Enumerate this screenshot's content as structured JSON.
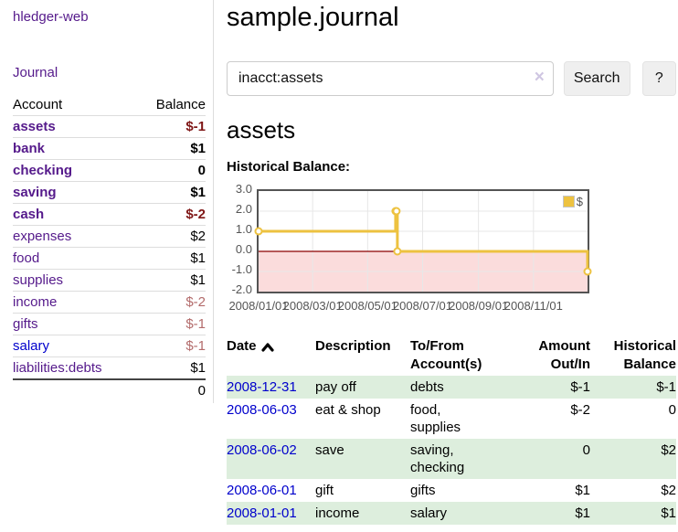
{
  "sidebar": {
    "brand": "hledger-web",
    "journal_link": "Journal",
    "accounts_table": {
      "account_header": "Account",
      "balance_header": "Balance",
      "rows": [
        {
          "name": "assets",
          "balance": "$-1"
        },
        {
          "name": "bank",
          "balance": "$1"
        },
        {
          "name": "checking",
          "balance": "0"
        },
        {
          "name": "saving",
          "balance": "$1"
        },
        {
          "name": "cash",
          "balance": "$-2"
        },
        {
          "name": "expenses",
          "balance": "$2"
        },
        {
          "name": "food",
          "balance": "$1"
        },
        {
          "name": "supplies",
          "balance": "$1"
        },
        {
          "name": "income",
          "balance": "$-2"
        },
        {
          "name": "gifts",
          "balance": "$-1"
        },
        {
          "name": "salary",
          "balance": "$-1"
        },
        {
          "name": "liabilities:debts",
          "balance": "$1"
        }
      ],
      "total": "0"
    }
  },
  "header": {
    "title": "sample.journal"
  },
  "search": {
    "query": "inacct:assets",
    "clear_icon": "×",
    "search_button": "Search",
    "help_button": "?"
  },
  "account_view": {
    "heading": "assets",
    "chart_title": "Historical Balance:"
  },
  "chart_data": {
    "type": "line",
    "style": "step",
    "title": "Historical Balance",
    "x_range": [
      "2008-01-01",
      "2008-12-31"
    ],
    "ylim": [
      -2,
      3
    ],
    "y_ticks": [
      "3.0",
      "2.0",
      "1.0",
      "0.0",
      "-1.0",
      "-2.0"
    ],
    "x_ticks": [
      "2008/01/01",
      "2008/03/01",
      "2008/05/01",
      "2008/07/01",
      "2008/09/01",
      "2008/11/01"
    ],
    "series": [
      {
        "name": "$",
        "color": "#edc240",
        "points": [
          [
            "2008-01-01",
            1
          ],
          [
            "2008-06-01",
            2
          ],
          [
            "2008-06-02",
            2
          ],
          [
            "2008-06-03",
            0
          ],
          [
            "2008-12-31",
            -1
          ]
        ]
      }
    ],
    "legend": {
      "label": "$",
      "position": "top-right"
    },
    "grid": true,
    "negative_region_color": "#fbdcdc",
    "zero_line_color": "#8b0000",
    "grid_color": "#e7e7e7",
    "border_color": "#545454"
  },
  "register": {
    "headers": {
      "date": "Date",
      "description": "Description",
      "accounts_line1": "To/From",
      "accounts_line2": "Account(s)",
      "amount_line1": "Amount",
      "amount_line2": "Out/In",
      "balance_line1": "Historical",
      "balance_line2": "Balance"
    },
    "sort_icon": "chevron-up",
    "rows": [
      {
        "date": "2008-12-31",
        "description": "pay off",
        "accounts": "debts",
        "amount": "$-1",
        "balance": "$-1"
      },
      {
        "date": "2008-06-03",
        "description": "eat & shop",
        "accounts": "food, supplies",
        "amount": "$-2",
        "balance": "0"
      },
      {
        "date": "2008-06-02",
        "description": "save",
        "accounts": "saving, checking",
        "amount": "0",
        "balance": "$2"
      },
      {
        "date": "2008-06-01",
        "description": "gift",
        "accounts": "gifts",
        "amount": "$1",
        "balance": "$2"
      },
      {
        "date": "2008-01-01",
        "description": "income",
        "accounts": "salary",
        "amount": "$1",
        "balance": "$1"
      }
    ]
  },
  "colors": {
    "link_purple": "#551a8b",
    "link_blue": "#0000cc",
    "negative_strong": "#7f1616",
    "negative_soft": "#b36b6b",
    "row_stripe_green": "#ddeedd",
    "series_gold": "#edc240"
  }
}
